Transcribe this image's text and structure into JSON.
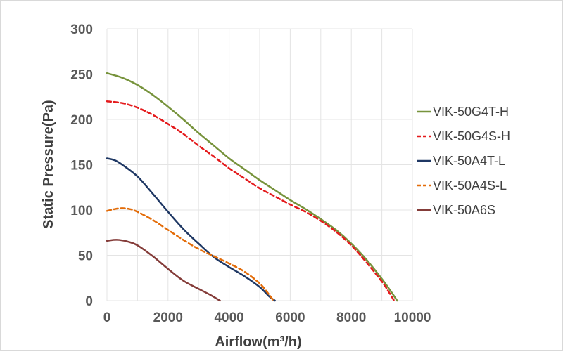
{
  "chart_data": {
    "type": "line",
    "title": "",
    "xlabel": "Airflow(m³/h)",
    "ylabel": "Static Pressure(Pa)",
    "xlim": [
      0,
      10000
    ],
    "ylim": [
      0,
      300
    ],
    "xticks": [
      0,
      2000,
      4000,
      6000,
      8000,
      10000
    ],
    "yticks": [
      0,
      50,
      100,
      150,
      200,
      250,
      300
    ],
    "xtick_labels": [
      "0",
      "2000",
      "4000",
      "6000",
      "8000",
      "10000"
    ],
    "ytick_labels": [
      "0",
      "50",
      "100",
      "150",
      "200",
      "250",
      "300"
    ],
    "grid": true,
    "legend_position": "right",
    "series": [
      {
        "name": "VIK-50G4T-H",
        "color": "#77933c",
        "dash": "solid",
        "points": [
          [
            0,
            251
          ],
          [
            500,
            246
          ],
          [
            1000,
            238
          ],
          [
            1500,
            227
          ],
          [
            2000,
            214
          ],
          [
            2500,
            200
          ],
          [
            3000,
            185
          ],
          [
            3500,
            171
          ],
          [
            4000,
            157
          ],
          [
            4500,
            145
          ],
          [
            5000,
            133
          ],
          [
            5500,
            122
          ],
          [
            6000,
            111
          ],
          [
            6500,
            101
          ],
          [
            7000,
            90
          ],
          [
            7500,
            78
          ],
          [
            8000,
            63
          ],
          [
            8500,
            45
          ],
          [
            9000,
            24
          ],
          [
            9300,
            10
          ],
          [
            9500,
            0
          ]
        ]
      },
      {
        "name": "VIK-50G4S-H",
        "color": "#e41a1c",
        "dash": "dashed",
        "points": [
          [
            0,
            220
          ],
          [
            500,
            218
          ],
          [
            1000,
            213
          ],
          [
            1500,
            205
          ],
          [
            2000,
            195
          ],
          [
            2500,
            184
          ],
          [
            3000,
            171
          ],
          [
            3500,
            159
          ],
          [
            4000,
            146
          ],
          [
            4500,
            135
          ],
          [
            5000,
            124
          ],
          [
            5500,
            115
          ],
          [
            6000,
            106
          ],
          [
            6500,
            98
          ],
          [
            7000,
            88
          ],
          [
            7500,
            76
          ],
          [
            8000,
            61
          ],
          [
            8500,
            42
          ],
          [
            9000,
            21
          ],
          [
            9200,
            11
          ],
          [
            9400,
            0
          ]
        ]
      },
      {
        "name": "VIK-50A4T-L",
        "color": "#1f3864",
        "dash": "solid",
        "points": [
          [
            0,
            157
          ],
          [
            250,
            155
          ],
          [
            500,
            150
          ],
          [
            1000,
            137
          ],
          [
            1500,
            118
          ],
          [
            2000,
            98
          ],
          [
            2500,
            79
          ],
          [
            3000,
            63
          ],
          [
            3500,
            48
          ],
          [
            4000,
            37
          ],
          [
            4500,
            27
          ],
          [
            5000,
            15
          ],
          [
            5300,
            5
          ],
          [
            5500,
            0
          ]
        ]
      },
      {
        "name": "VIK-50A4S-L",
        "color": "#e36c09",
        "dash": "dashed",
        "points": [
          [
            0,
            99
          ],
          [
            250,
            101
          ],
          [
            500,
            102
          ],
          [
            750,
            101
          ],
          [
            1000,
            98
          ],
          [
            1500,
            89
          ],
          [
            2000,
            78
          ],
          [
            2500,
            67
          ],
          [
            3000,
            57
          ],
          [
            3500,
            49
          ],
          [
            4000,
            41
          ],
          [
            4500,
            32
          ],
          [
            5000,
            19
          ],
          [
            5300,
            7
          ],
          [
            5450,
            0
          ]
        ]
      },
      {
        "name": "VIK-50A6S",
        "color": "#843c39",
        "dash": "solid",
        "points": [
          [
            0,
            66
          ],
          [
            200,
            67
          ],
          [
            400,
            67
          ],
          [
            700,
            65
          ],
          [
            1000,
            61
          ],
          [
            1500,
            49
          ],
          [
            2000,
            35
          ],
          [
            2500,
            22
          ],
          [
            3000,
            13
          ],
          [
            3400,
            6
          ],
          [
            3700,
            0
          ]
        ]
      }
    ]
  }
}
